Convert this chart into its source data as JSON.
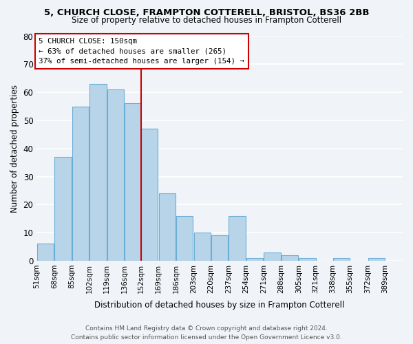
{
  "title1": "5, CHURCH CLOSE, FRAMPTON COTTERELL, BRISTOL, BS36 2BB",
  "title2": "Size of property relative to detached houses in Frampton Cotterell",
  "xlabel": "Distribution of detached houses by size in Frampton Cotterell",
  "ylabel": "Number of detached properties",
  "bar_color": "#b8d4e8",
  "bar_edge_color": "#6aaed6",
  "bin_labels": [
    "51sqm",
    "68sqm",
    "85sqm",
    "102sqm",
    "119sqm",
    "136sqm",
    "152sqm",
    "169sqm",
    "186sqm",
    "203sqm",
    "220sqm",
    "237sqm",
    "254sqm",
    "271sqm",
    "288sqm",
    "305sqm",
    "321sqm",
    "338sqm",
    "355sqm",
    "372sqm",
    "389sqm"
  ],
  "bin_left_edges": [
    51,
    68,
    85,
    102,
    119,
    136,
    152,
    169,
    186,
    203,
    220,
    237,
    254,
    271,
    288,
    305,
    321,
    338,
    355,
    372,
    389
  ],
  "values": [
    6,
    37,
    55,
    63,
    61,
    56,
    47,
    24,
    16,
    10,
    9,
    16,
    1,
    3,
    2,
    1,
    0,
    1,
    0,
    1
  ],
  "ylim": [
    0,
    80
  ],
  "yticks": [
    0,
    10,
    20,
    30,
    40,
    50,
    60,
    70,
    80
  ],
  "vline_x": 152,
  "vline_color": "#cc0000",
  "annotation_title": "5 CHURCH CLOSE: 150sqm",
  "annotation_line1": "← 63% of detached houses are smaller (265)",
  "annotation_line2": "37% of semi-detached houses are larger (154) →",
  "annotation_box_color": "#ffffff",
  "annotation_box_edge": "#cc0000",
  "footer1": "Contains HM Land Registry data © Crown copyright and database right 2024.",
  "footer2": "Contains public sector information licensed under the Open Government Licence v3.0.",
  "bg_color": "#f0f4f8",
  "grid_color": "#ffffff"
}
